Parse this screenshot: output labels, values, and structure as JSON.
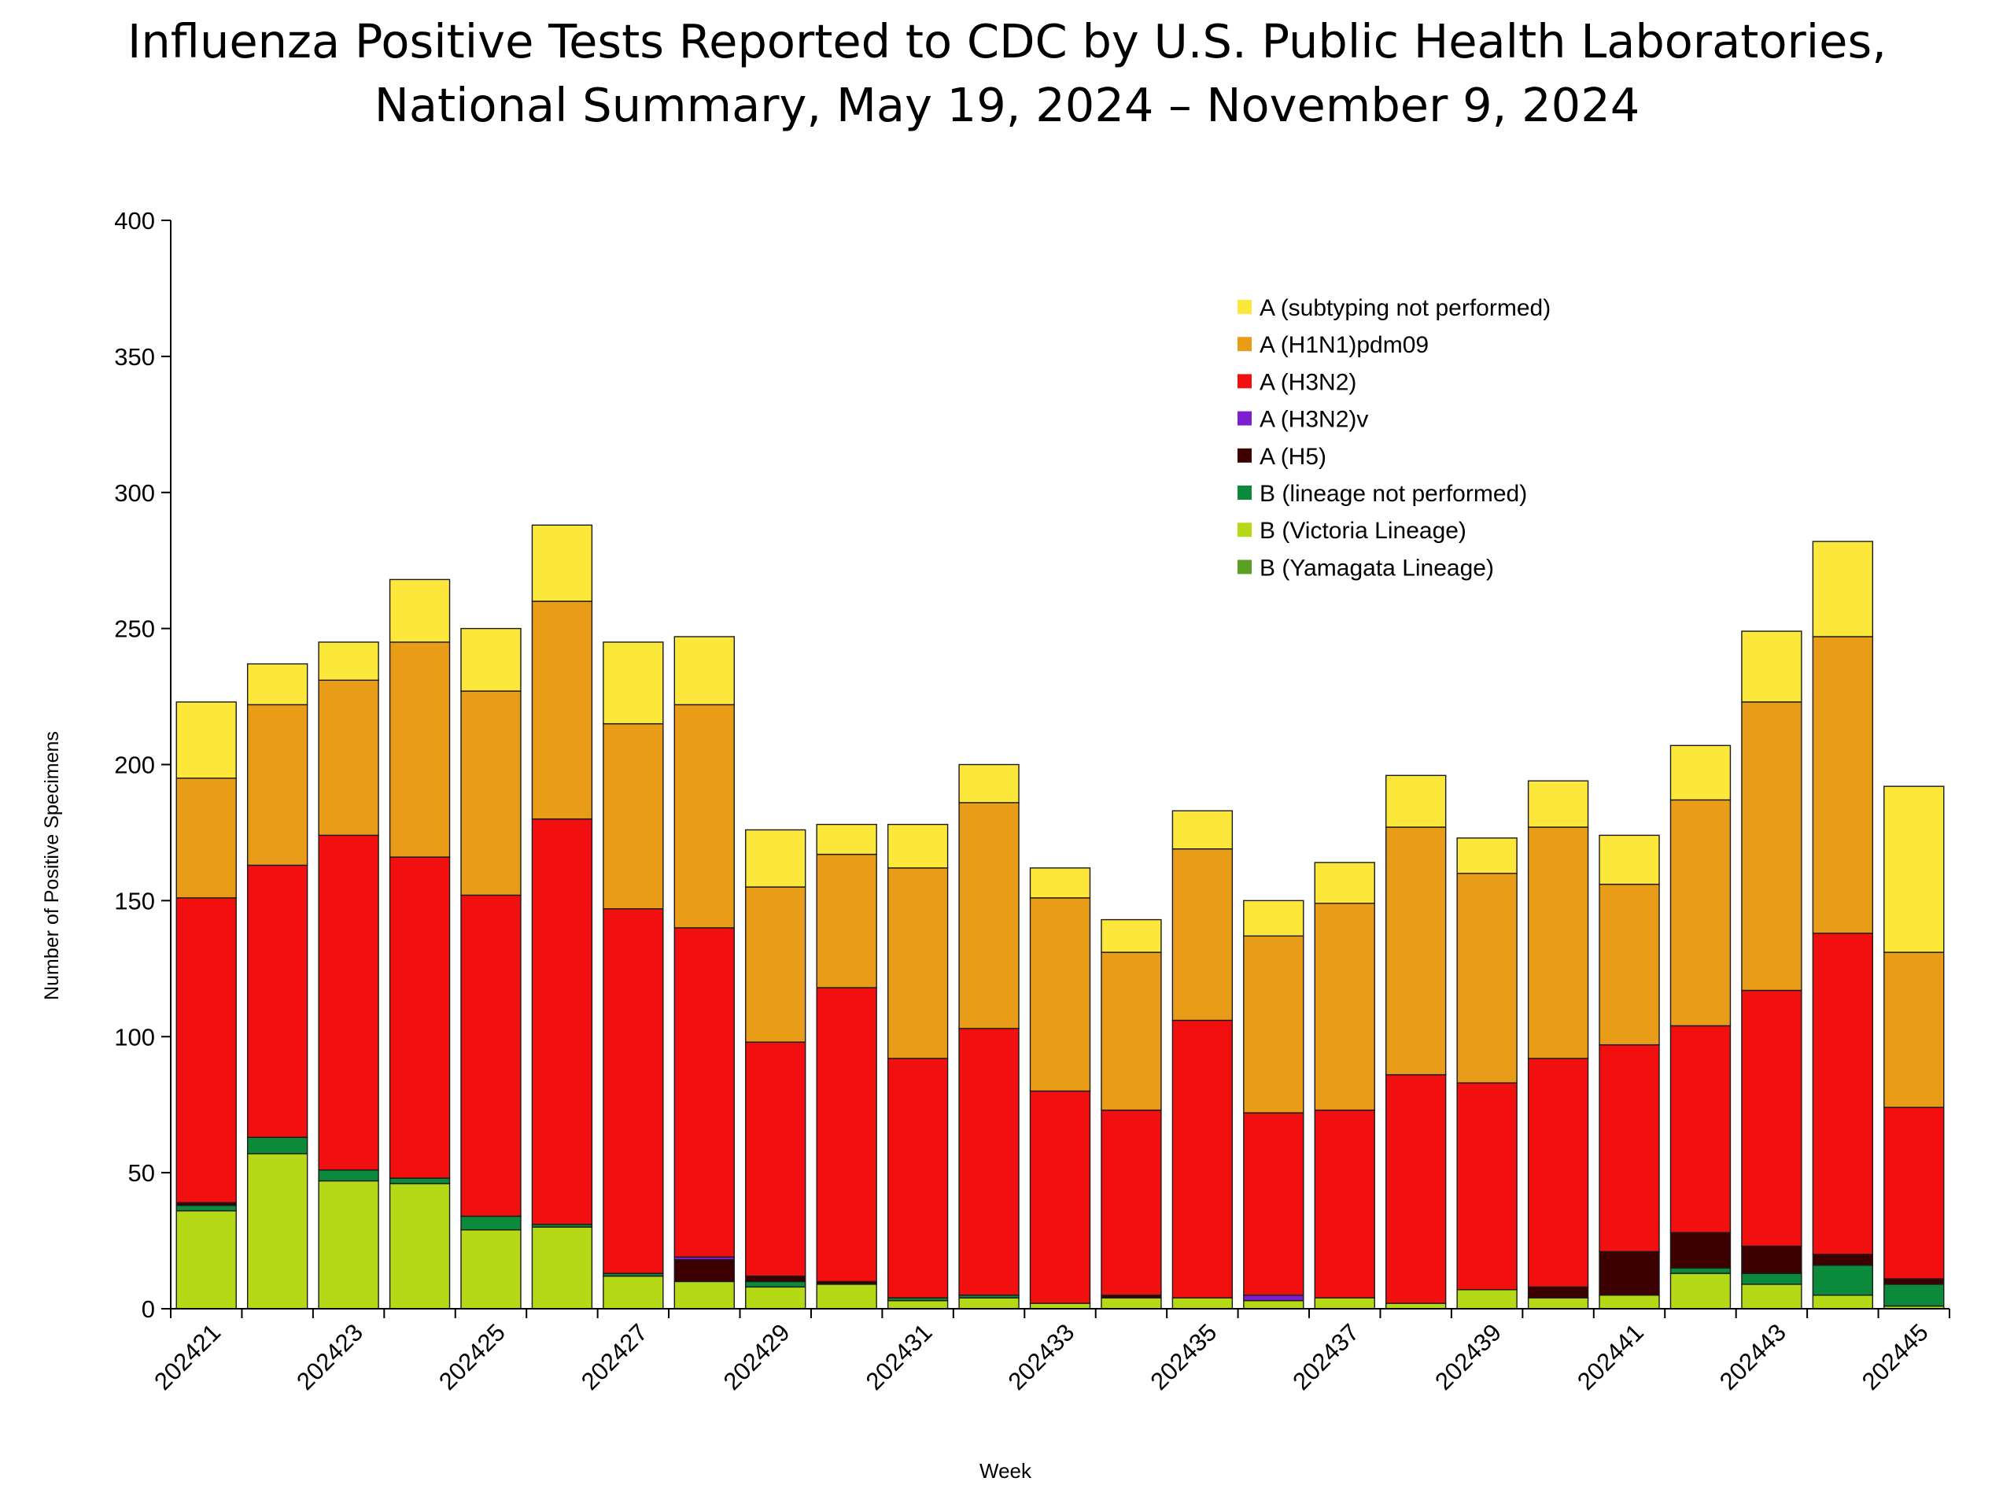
{
  "chart_data": {
    "type": "bar",
    "stacked": true,
    "title_line1": "Influenza Positive Tests Reported to CDC by U.S. Public Health Laboratories,",
    "title_line2": "National Summary, May 19, 2024 – November 9, 2024",
    "xlabel": "Week",
    "ylabel": "Number of Positive Specimens",
    "ylim": [
      0,
      400
    ],
    "yticks": [
      "0",
      "50",
      "100",
      "150",
      "200",
      "250",
      "300",
      "350",
      "400"
    ],
    "categories": [
      "202421",
      "202422",
      "202423",
      "202424",
      "202425",
      "202426",
      "202427",
      "202428",
      "202429",
      "202430",
      "202431",
      "202432",
      "202433",
      "202434",
      "202435",
      "202436",
      "202437",
      "202438",
      "202439",
      "202440",
      "202441",
      "202442",
      "202443",
      "202444",
      "202445"
    ],
    "xtick_labels": [
      "202421",
      "",
      "202423",
      "",
      "202425",
      "",
      "202427",
      "",
      "202429",
      "",
      "202431",
      "",
      "202433",
      "",
      "202435",
      "",
      "202437",
      "",
      "202439",
      "",
      "202441",
      "",
      "202443",
      "",
      "202445"
    ],
    "legend_position": "top-right",
    "series": [
      {
        "name": "B (Victoria Lineage)",
        "color": "#b5d916",
        "values": [
          36,
          57,
          47,
          46,
          29,
          30,
          12,
          10,
          8,
          9,
          3,
          4,
          2,
          4,
          4,
          3,
          4,
          2,
          7,
          4,
          5,
          13,
          9,
          5,
          1
        ]
      },
      {
        "name": "B (Yamagata Lineage)",
        "color": "#5aa022",
        "values": [
          0,
          0,
          0,
          0,
          0,
          0,
          0,
          0,
          0,
          0,
          0,
          0,
          0,
          0,
          0,
          0,
          0,
          0,
          0,
          0,
          0,
          0,
          0,
          0,
          0
        ]
      },
      {
        "name": "B (lineage not performed)",
        "color": "#0a8a3a",
        "values": [
          2,
          6,
          4,
          2,
          5,
          1,
          1,
          0,
          2,
          0,
          1,
          1,
          0,
          0,
          0,
          0,
          0,
          0,
          0,
          0,
          0,
          2,
          4,
          11,
          8
        ]
      },
      {
        "name": "A (H5)",
        "color": "#3d0000",
        "values": [
          1,
          0,
          0,
          0,
          0,
          0,
          0,
          8,
          2,
          1,
          0,
          0,
          0,
          1,
          0,
          0,
          0,
          0,
          0,
          4,
          16,
          13,
          10,
          4,
          2
        ]
      },
      {
        "name": "A (H3N2)v",
        "color": "#7b1fd1",
        "values": [
          0,
          0,
          0,
          0,
          0,
          0,
          0,
          1,
          0,
          0,
          0,
          0,
          0,
          0,
          0,
          2,
          0,
          0,
          0,
          0,
          0,
          0,
          0,
          0,
          0
        ]
      },
      {
        "name": "A (H3N2)",
        "color": "#f20f10",
        "values": [
          112,
          100,
          123,
          118,
          118,
          149,
          134,
          121,
          86,
          108,
          88,
          98,
          78,
          68,
          102,
          67,
          69,
          84,
          76,
          84,
          76,
          76,
          94,
          118,
          63
        ]
      },
      {
        "name": "A (H1N1)pdm09",
        "color": "#e99c17",
        "values": [
          44,
          59,
          57,
          79,
          75,
          80,
          68,
          82,
          57,
          49,
          70,
          83,
          71,
          58,
          63,
          65,
          76,
          91,
          77,
          85,
          59,
          83,
          106,
          109,
          57
        ]
      },
      {
        "name": "A (subtyping not performed)",
        "color": "#fce83a",
        "values": [
          28,
          15,
          14,
          23,
          23,
          28,
          30,
          25,
          21,
          11,
          16,
          14,
          11,
          12,
          14,
          13,
          15,
          19,
          13,
          17,
          18,
          20,
          26,
          35,
          61
        ]
      }
    ],
    "legend_order": [
      "A (subtyping not performed)",
      "A (H1N1)pdm09",
      "A (H3N2)",
      "A (H3N2)v",
      "A (H5)",
      "B (lineage not performed)",
      "B (Victoria Lineage)",
      "B (Yamagata Lineage)"
    ]
  }
}
